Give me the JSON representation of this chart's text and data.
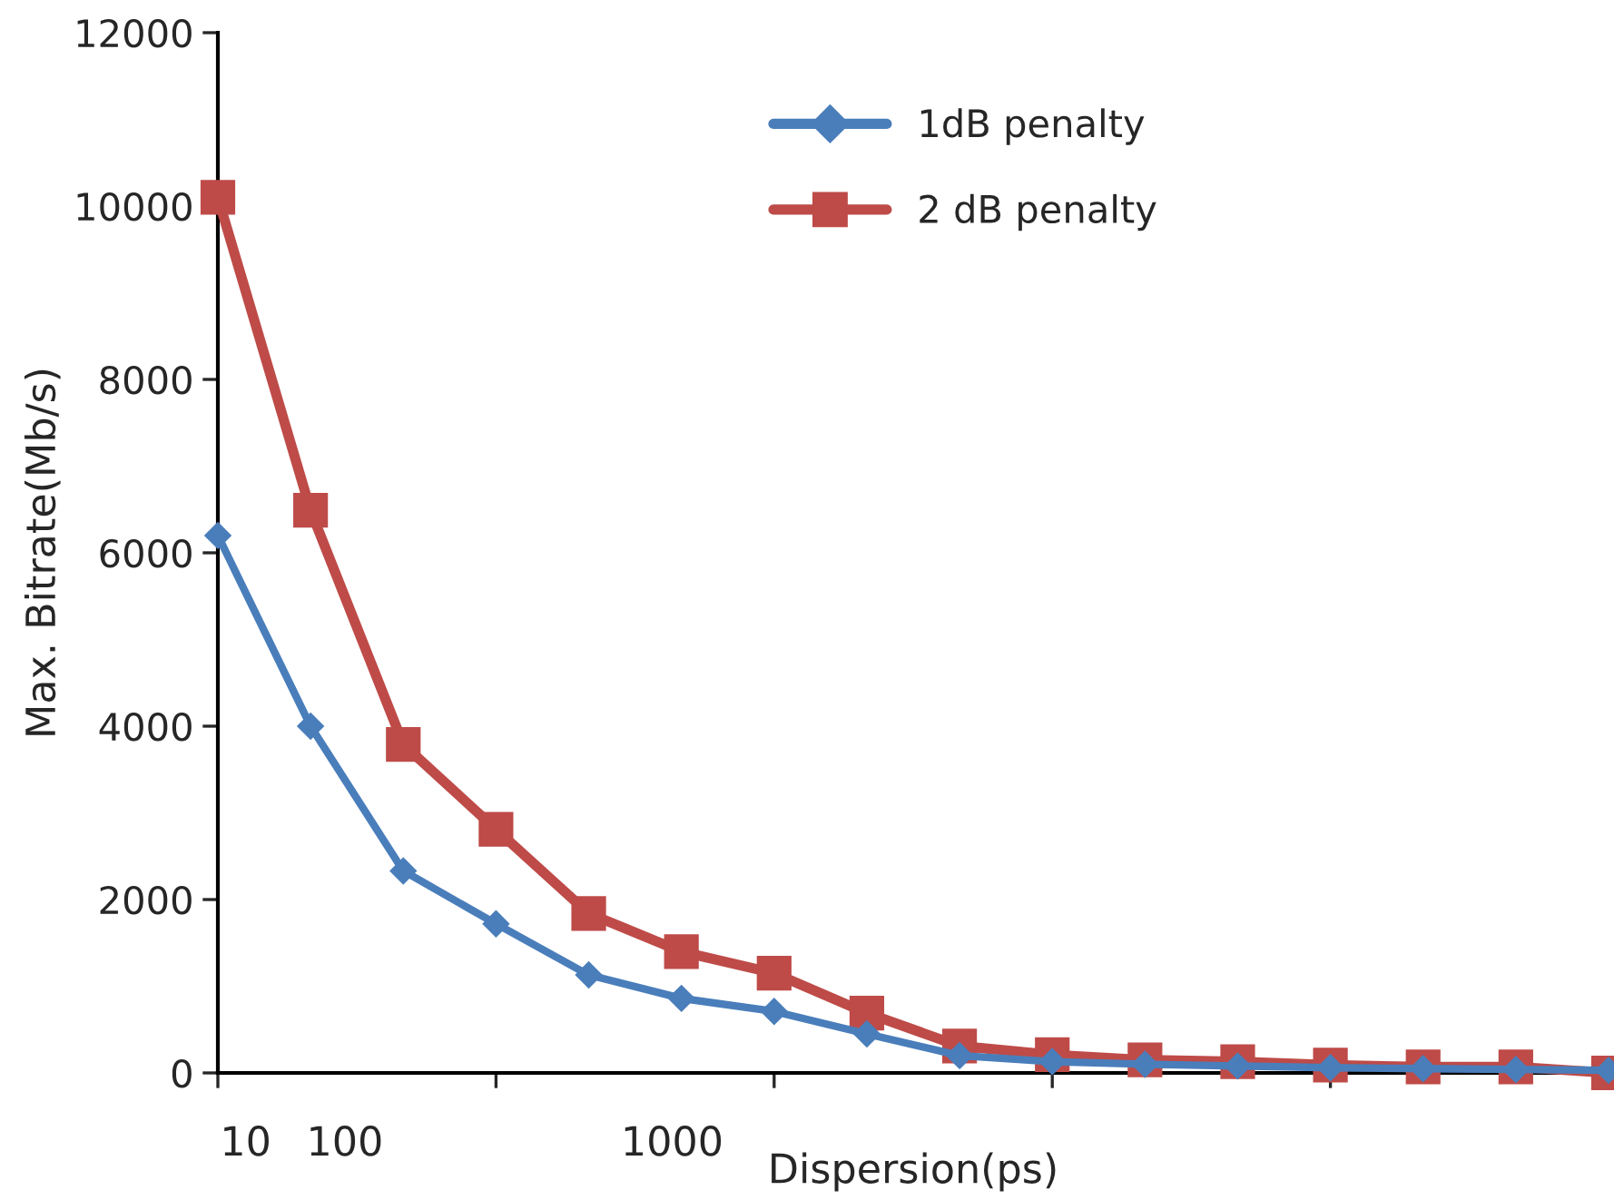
{
  "chart_data": {
    "type": "line",
    "xlabel": "Dispersion(ps)",
    "ylabel": "Max. Bitrate(Mb/s)",
    "categories": [
      null,
      null,
      null,
      null,
      null,
      null,
      null,
      null,
      null,
      null,
      null,
      null,
      null,
      null,
      null,
      null
    ],
    "series": [
      {
        "name": "1dB penalty",
        "color": "#4a7ebb",
        "marker": "diamond",
        "values": [
          6200,
          4000,
          2330,
          1720,
          1130,
          860,
          710,
          450,
          200,
          130,
          100,
          80,
          60,
          50,
          40,
          30
        ]
      },
      {
        "name": "2 dB penalty",
        "color": "#be4b48",
        "marker": "square",
        "values": [
          10100,
          6490,
          3790,
          2810,
          1840,
          1400,
          1150,
          690,
          310,
          210,
          150,
          130,
          90,
          70,
          70,
          0
        ]
      }
    ],
    "ylim": [
      0,
      12000
    ],
    "yticks": [
      0,
      2000,
      4000,
      6000,
      8000,
      10000,
      12000
    ],
    "annotations": [
      "10",
      "100",
      "1000"
    ],
    "grid": false,
    "legend": "top right",
    "line_style": "solid"
  }
}
